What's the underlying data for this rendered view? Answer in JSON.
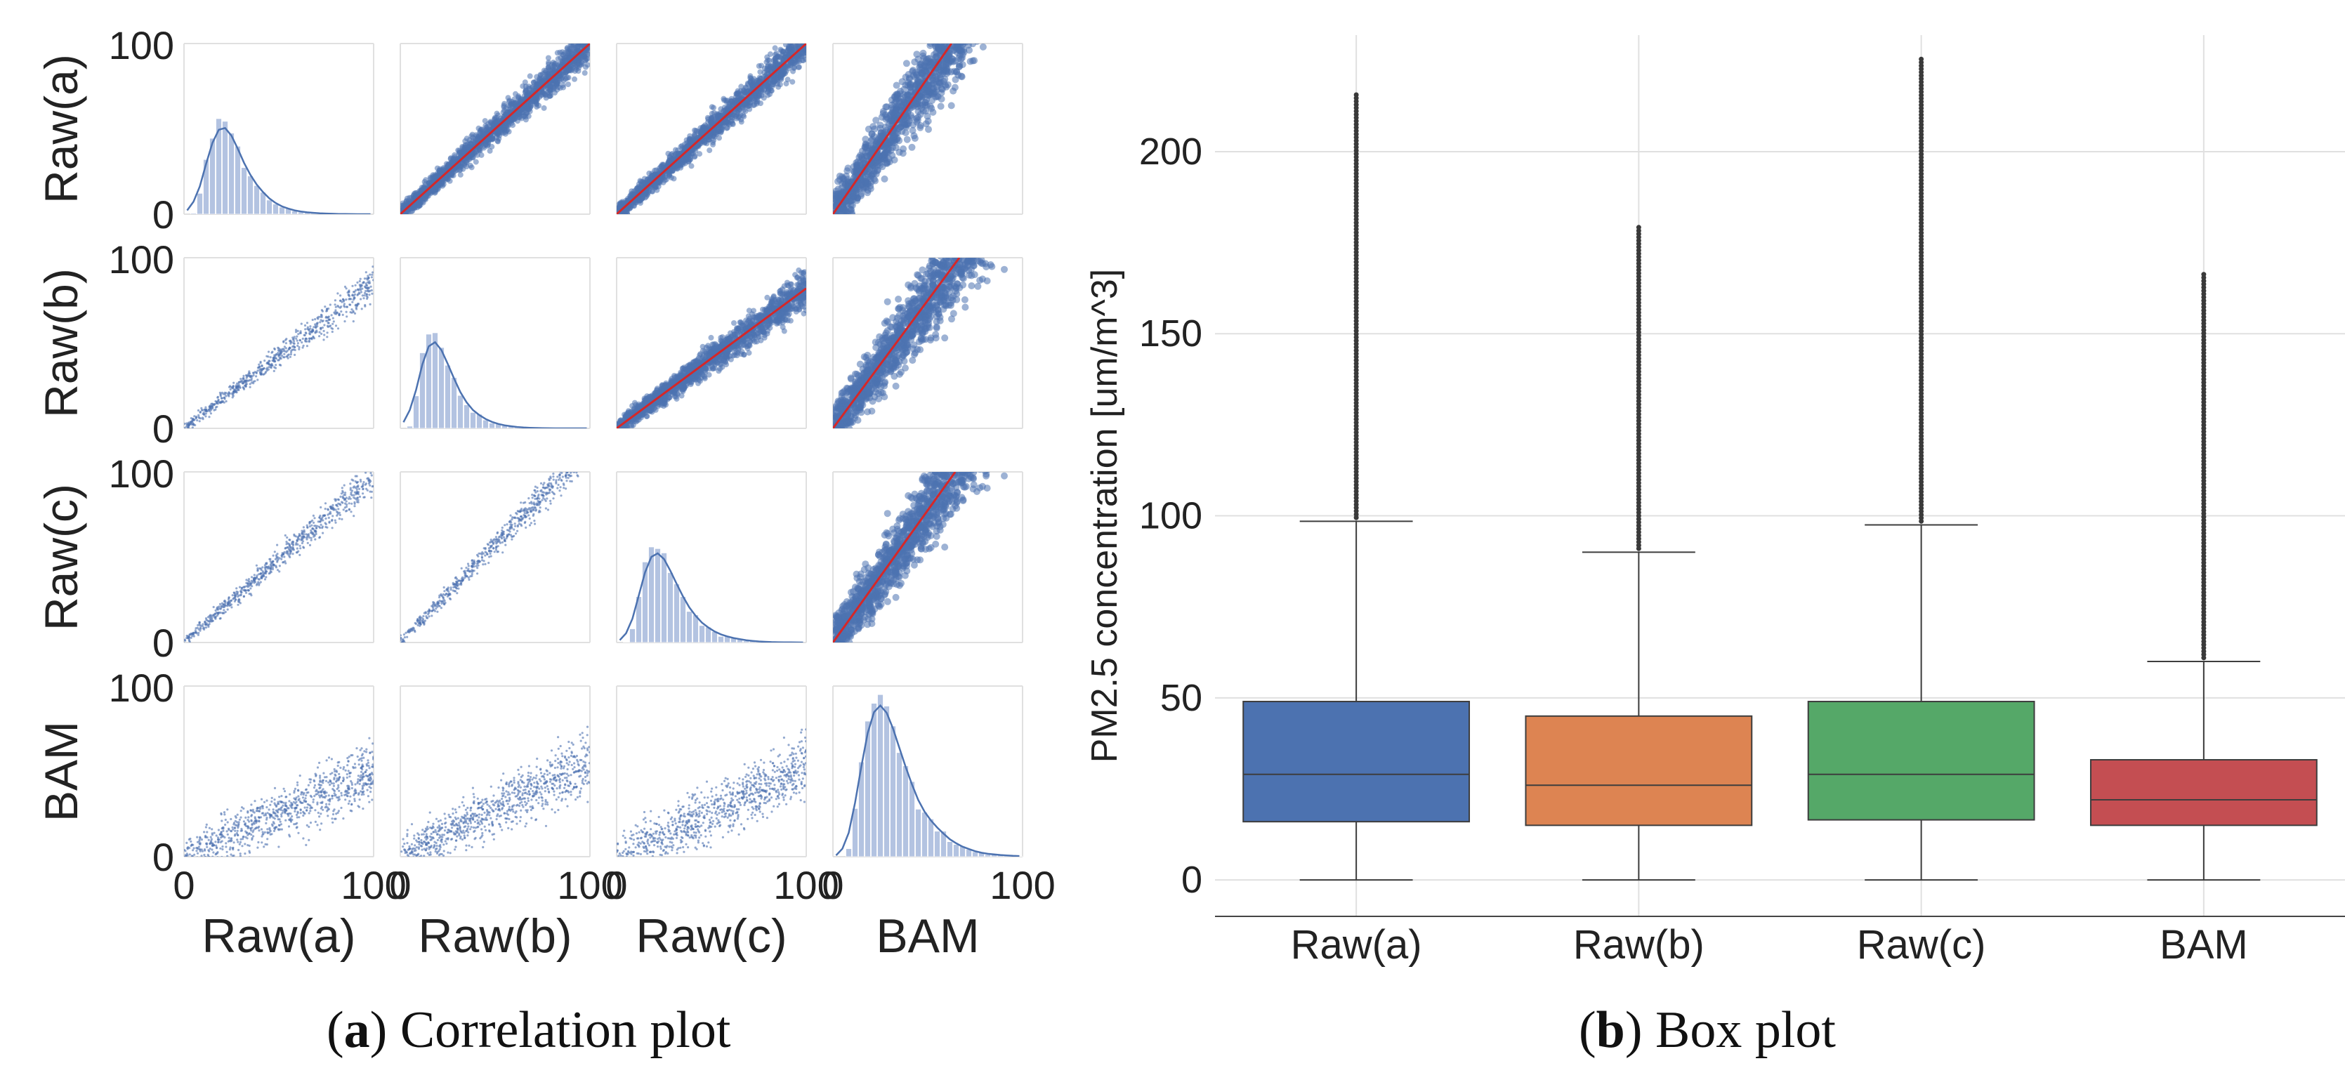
{
  "colors": {
    "scatter_blue": "#4c72b0",
    "fit_red": "#d62728",
    "hist_fill": "#b3c3e1",
    "grid": "#e0e0e0",
    "box_raw_a": "#4c72b0",
    "box_raw_b": "#dd8452",
    "box_raw_c": "#55a868",
    "box_bam": "#c44e52",
    "box_edge": "#3d3d3d"
  },
  "captions": {
    "a": {
      "label": "a",
      "text": "Correlation plot"
    },
    "b": {
      "label": "b",
      "text": "Box plot"
    }
  },
  "chart_data": [
    {
      "type": "scatter",
      "subtype": "pairplot",
      "title": "Correlation plot",
      "variables": [
        "Raw(a)",
        "Raw(b)",
        "Raw(c)",
        "BAM"
      ],
      "axis_range": [
        0,
        100
      ],
      "tick_labels": [
        "0",
        "100"
      ],
      "grid": true,
      "diagonal": "histogram with KDE",
      "lower_triangle": "scatter of sample points",
      "upper_triangle": "dense scatter with red regression fit",
      "upper_fit_slopes": [
        [
          null,
          1.0,
          1.0,
          1.6
        ],
        [
          null,
          null,
          0.82,
          1.5
        ],
        [
          null,
          null,
          null,
          1.55
        ],
        [
          null,
          null,
          null,
          null
        ]
      ],
      "lower_slopes": [
        [
          null,
          null,
          null,
          null
        ],
        [
          0.85,
          null,
          null,
          null
        ],
        [
          0.98,
          1.15,
          null,
          null
        ],
        [
          0.5,
          0.55,
          0.52,
          null
        ]
      ],
      "diagonal_peaks": [
        16,
        14,
        17,
        20
      ]
    },
    {
      "type": "box",
      "title": "Box plot",
      "ylabel": "PM2.5 concentration [um/m^3]",
      "xlabel": "",
      "ylim": [
        -10,
        232
      ],
      "yticks": [
        0,
        50,
        100,
        150,
        200
      ],
      "grid": true,
      "categories": [
        "Raw(a)",
        "Raw(b)",
        "Raw(c)",
        "BAM"
      ],
      "boxes": [
        {
          "name": "Raw(a)",
          "min": 0,
          "q1": 16,
          "median": 29,
          "q3": 49,
          "whisker_high": 98.5,
          "outlier_max": 216,
          "color": "#4c72b0"
        },
        {
          "name": "Raw(b)",
          "min": 0,
          "q1": 15,
          "median": 26,
          "q3": 45,
          "whisker_high": 90,
          "outlier_max": 180,
          "color": "#dd8452"
        },
        {
          "name": "Raw(c)",
          "min": 0,
          "q1": 16.5,
          "median": 29,
          "q3": 49,
          "whisker_high": 97.5,
          "outlier_max": 226,
          "color": "#55a868"
        },
        {
          "name": "BAM",
          "min": 0,
          "q1": 15,
          "median": 22,
          "q3": 33,
          "whisker_high": 60,
          "outlier_max": 167,
          "color": "#c44e52"
        }
      ]
    }
  ]
}
